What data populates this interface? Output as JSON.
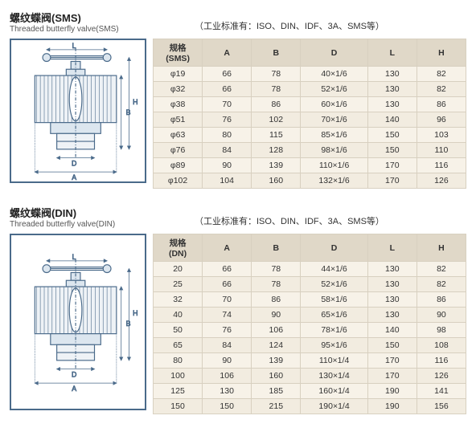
{
  "sections": [
    {
      "title_cn": "螺纹蝶阀(SMS)",
      "title_en": "Threaded butterfly valve(SMS)",
      "note": "（工业标准有：ISO、DIN、IDF、3A、SMS等）",
      "spec_header": "规格\\n(SMS)",
      "columns": [
        "A",
        "B",
        "D",
        "L",
        "H"
      ],
      "rows": [
        {
          "spec": "φ19",
          "A": "66",
          "B": "78",
          "D": "40×1/6",
          "L": "130",
          "H": "82"
        },
        {
          "spec": "φ32",
          "A": "66",
          "B": "78",
          "D": "52×1/6",
          "L": "130",
          "H": "82"
        },
        {
          "spec": "φ38",
          "A": "70",
          "B": "86",
          "D": "60×1/6",
          "L": "130",
          "H": "86"
        },
        {
          "spec": "φ51",
          "A": "76",
          "B": "102",
          "D": "70×1/6",
          "L": "140",
          "H": "96"
        },
        {
          "spec": "φ63",
          "A": "80",
          "B": "115",
          "D": "85×1/6",
          "L": "150",
          "H": "103"
        },
        {
          "spec": "φ76",
          "A": "84",
          "B": "128",
          "D": "98×1/6",
          "L": "150",
          "H": "110"
        },
        {
          "spec": "φ89",
          "A": "90",
          "B": "139",
          "D": "110×1/6",
          "L": "170",
          "H": "116"
        },
        {
          "spec": "φ102",
          "A": "104",
          "B": "160",
          "D": "132×1/6",
          "L": "170",
          "H": "126"
        }
      ]
    },
    {
      "title_cn": "螺纹蝶阀(DIN)",
      "title_en": "Threaded butterfly valve(DIN)",
      "note": "（工业标准有：ISO、DIN、IDF、3A、SMS等）",
      "spec_header": "规格\\n(DN)",
      "columns": [
        "A",
        "B",
        "D",
        "L",
        "H"
      ],
      "rows": [
        {
          "spec": "20",
          "A": "66",
          "B": "78",
          "D": "44×1/6",
          "L": "130",
          "H": "82"
        },
        {
          "spec": "25",
          "A": "66",
          "B": "78",
          "D": "52×1/6",
          "L": "130",
          "H": "82"
        },
        {
          "spec": "32",
          "A": "70",
          "B": "86",
          "D": "58×1/6",
          "L": "130",
          "H": "86"
        },
        {
          "spec": "40",
          "A": "74",
          "B": "90",
          "D": "65×1/6",
          "L": "130",
          "H": "90"
        },
        {
          "spec": "50",
          "A": "76",
          "B": "106",
          "D": "78×1/6",
          "L": "140",
          "H": "98"
        },
        {
          "spec": "65",
          "A": "84",
          "B": "124",
          "D": "95×1/6",
          "L": "150",
          "H": "108"
        },
        {
          "spec": "80",
          "A": "90",
          "B": "139",
          "D": "110×1/4",
          "L": "170",
          "H": "116"
        },
        {
          "spec": "100",
          "A": "106",
          "B": "160",
          "D": "130×1/4",
          "L": "170",
          "H": "126"
        },
        {
          "spec": "125",
          "A": "130",
          "B": "185",
          "D": "160×1/4",
          "L": "190",
          "H": "141"
        },
        {
          "spec": "150",
          "A": "150",
          "B": "215",
          "D": "190×1/4",
          "L": "190",
          "H": "156"
        }
      ]
    }
  ],
  "diagram_labels": {
    "L": "L",
    "H": "H",
    "A": "A",
    "B": "B",
    "D": "D"
  }
}
